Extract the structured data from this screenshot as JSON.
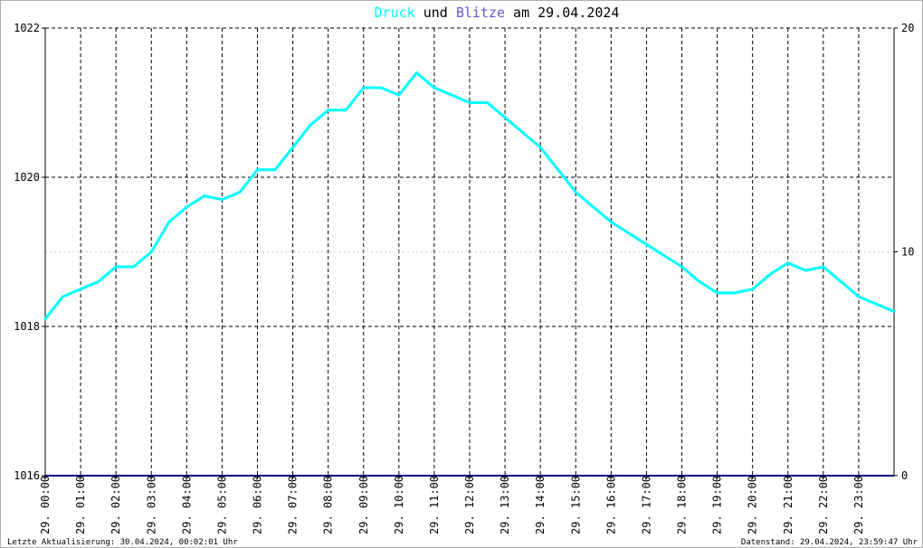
{
  "title": {
    "part1": "Druck",
    "part2": " und ",
    "part3": "Blitze",
    "part4": " am 29.04.2024"
  },
  "colors": {
    "pressure": "#00ffff",
    "lightning": "#6a5acd",
    "baseline": "#000080",
    "text": "#000000",
    "grid": "#000000",
    "minor_grid": "#cccccc"
  },
  "footer": {
    "left": "Letzte Aktualisierung: 30.04.2024, 00:02:01 Uhr",
    "right": "Datenstand: 29.04.2024, 23:59:47 Uhr"
  },
  "chart_data": {
    "type": "line",
    "title": "Druck und Blitze am 29.04.2024",
    "x_tick_labels": [
      "29. 00:00",
      "29. 01:00",
      "29. 02:00",
      "29. 03:00",
      "29. 04:00",
      "29. 05:00",
      "29. 06:00",
      "29. 07:00",
      "29. 08:00",
      "29. 09:00",
      "29. 10:00",
      "29. 11:00",
      "29. 12:00",
      "29. 13:00",
      "29. 14:00",
      "29. 15:00",
      "29. 16:00",
      "29. 17:00",
      "29. 18:00",
      "29. 19:00",
      "29. 20:00",
      "29. 21:00",
      "29. 22:00",
      "29. 23:00"
    ],
    "xlim_hours": [
      0,
      24
    ],
    "y_left": {
      "min": 1016,
      "max": 1022,
      "ticks": [
        1016,
        1018,
        1020,
        1022
      ]
    },
    "y_right": {
      "min": 0,
      "max": 20,
      "ticks": [
        0,
        10,
        20
      ]
    },
    "grid": true,
    "series": [
      {
        "name": "Druck",
        "axis": "left",
        "x_hours": [
          0,
          0.5,
          1,
          1.5,
          2,
          2.5,
          3,
          3.5,
          4,
          4.5,
          5,
          5.5,
          6,
          6.5,
          7,
          7.5,
          8,
          8.5,
          9,
          9.5,
          10,
          10.5,
          11,
          11.5,
          12,
          12.5,
          13,
          13.5,
          14,
          14.5,
          15,
          15.5,
          16,
          16.5,
          17,
          17.5,
          18,
          18.5,
          19,
          19.5,
          20,
          20.5,
          21,
          21.5,
          22,
          22.5,
          23,
          23.5,
          24
        ],
        "values": [
          1018.1,
          1018.4,
          1018.5,
          1018.6,
          1018.8,
          1018.8,
          1019.0,
          1019.4,
          1019.6,
          1019.75,
          1019.7,
          1019.8,
          1020.1,
          1020.1,
          1020.4,
          1020.7,
          1020.9,
          1020.9,
          1021.2,
          1021.2,
          1021.1,
          1021.4,
          1021.2,
          1021.1,
          1021.0,
          1021.0,
          1020.8,
          1020.6,
          1020.4,
          1020.1,
          1019.8,
          1019.6,
          1019.4,
          1019.25,
          1019.1,
          1018.95,
          1018.8,
          1018.6,
          1018.45,
          1018.45,
          1018.5,
          1018.7,
          1018.85,
          1018.75,
          1018.8,
          1018.6,
          1018.4,
          1018.3,
          1018.2
        ]
      },
      {
        "name": "Blitze",
        "axis": "right",
        "x_hours": [
          0,
          24
        ],
        "values": [
          0,
          0
        ]
      }
    ]
  }
}
